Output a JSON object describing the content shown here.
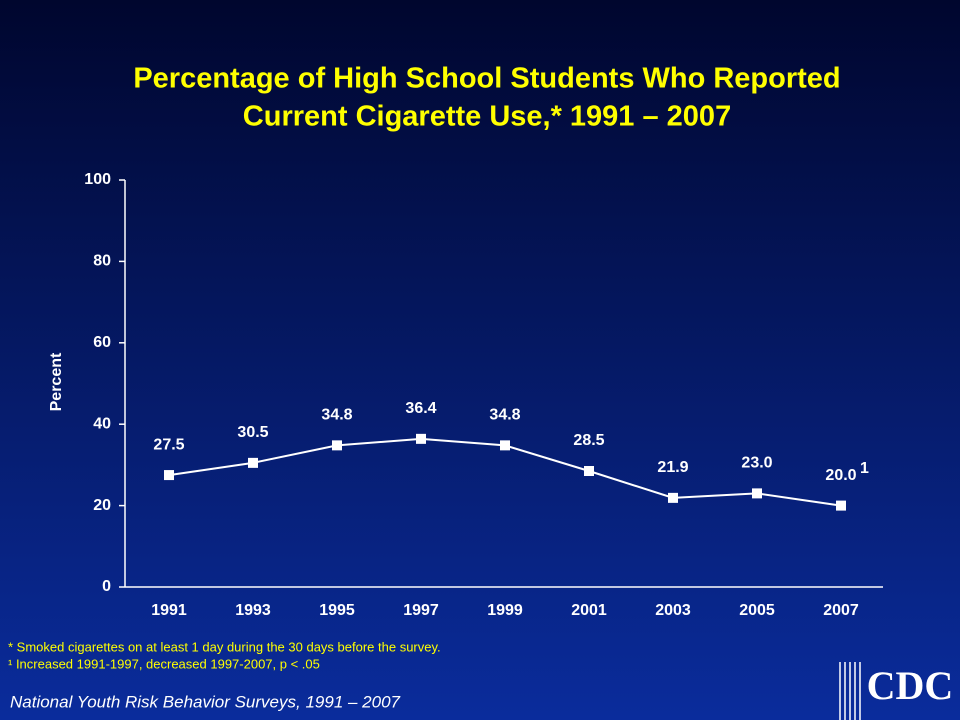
{
  "chart_data": {
    "type": "line",
    "title": [
      "Percentage of High School Students Who Reported",
      "Current Cigarette Use,* 1991 – 2007"
    ],
    "y_label": "Percent",
    "categories": [
      "1991",
      "1993",
      "1995",
      "1997",
      "1999",
      "2001",
      "2003",
      "2005",
      "2007"
    ],
    "series": [
      {
        "color": "#ffffff",
        "values": [
          27.5,
          30.5,
          34.8,
          36.4,
          34.8,
          28.5,
          21.9,
          23.0,
          20.0
        ],
        "value_labels": [
          "27.5",
          "30.5",
          "34.8",
          "36.4",
          "34.8",
          "28.5",
          "21.9",
          "23.0",
          "20.0"
        ],
        "value_label_footnotes": [
          null,
          null,
          null,
          null,
          null,
          null,
          null,
          null,
          "1"
        ]
      }
    ],
    "ylim": [
      0,
      100
    ],
    "yticks": [
      0,
      20,
      40,
      60,
      80,
      100
    ],
    "grid": false,
    "footnotes": [
      "* Smoked cigarettes on at least 1 day during the 30 days before the survey.",
      "¹ Increased 1991-1997, decreased 1997-2007, p < .05"
    ],
    "source": "National Youth Risk Behavior Surveys, 1991 – 2007",
    "logo": "CDC"
  }
}
